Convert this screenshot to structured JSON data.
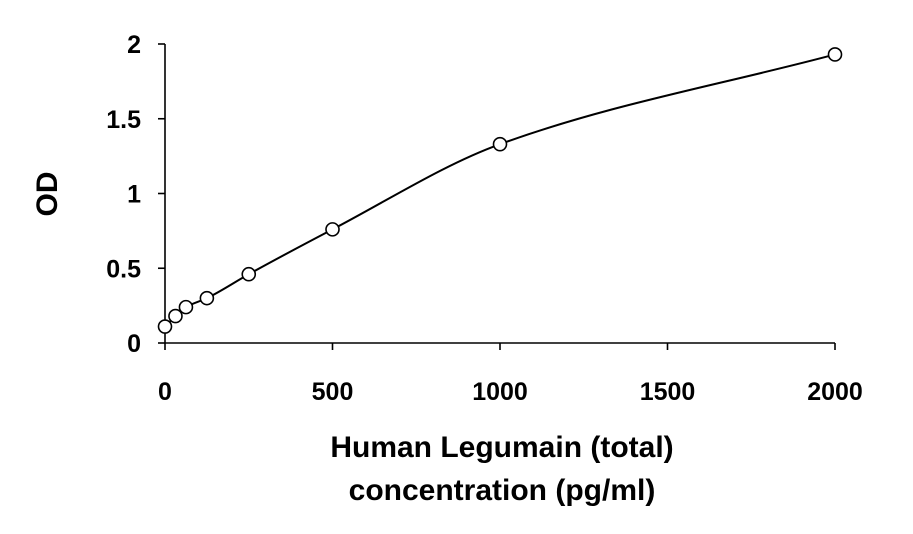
{
  "chart_data": {
    "type": "scatter",
    "xlabel_lines": [
      "Human Legumain (total)",
      "concentration (pg/ml)"
    ],
    "ylabel": "OD",
    "xlim": [
      0,
      2000
    ],
    "ylim": [
      0,
      2
    ],
    "xticks": [
      "0",
      "500",
      "1000",
      "1500",
      "2000"
    ],
    "yticks": [
      "0",
      "0.5",
      "1",
      "1.5",
      "2"
    ],
    "grid": false,
    "legend": "none",
    "trendline": "smooth fitted curve through points",
    "series": [
      {
        "x": [
          0,
          31.25,
          62.5,
          125,
          250,
          500,
          1000,
          2000
        ],
        "y": [
          0.11,
          0.18,
          0.24,
          0.3,
          0.46,
          0.76,
          1.33,
          1.93
        ]
      }
    ],
    "colors": {
      "line": "#000000",
      "marker": "#000000",
      "background": "#ffffff"
    }
  }
}
